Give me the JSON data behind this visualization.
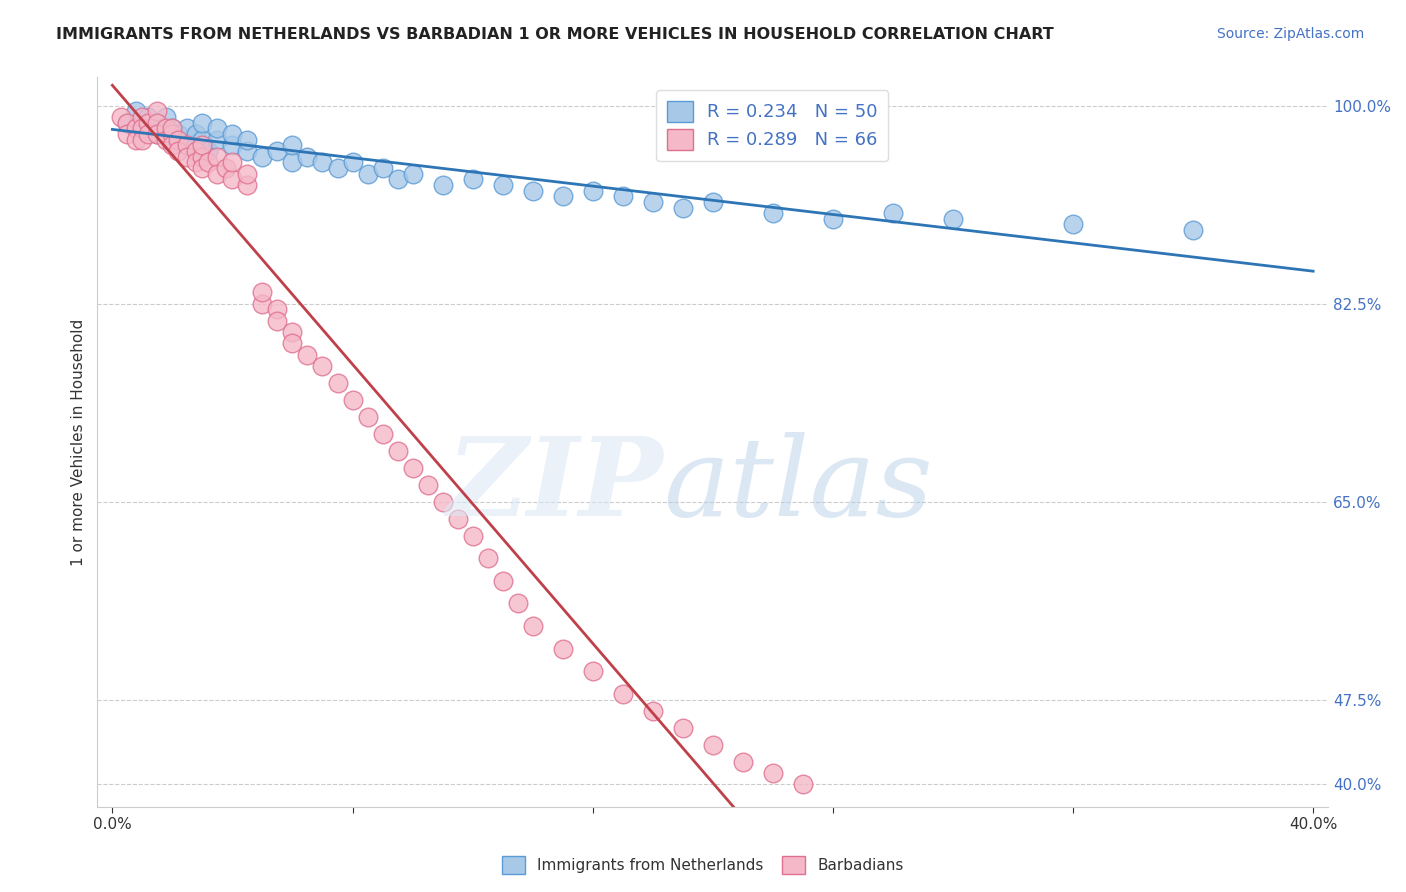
{
  "title": "IMMIGRANTS FROM NETHERLANDS VS BARBADIAN 1 OR MORE VEHICLES IN HOUSEHOLD CORRELATION CHART",
  "source": "Source: ZipAtlas.com",
  "ylabel_label": "1 or more Vehicles in Household",
  "legend_label1": "Immigrants from Netherlands",
  "legend_label2": "Barbadians",
  "R1": 0.234,
  "N1": 50,
  "R2": 0.289,
  "N2": 66,
  "color_netherlands": "#a8c8e8",
  "color_netherlands_edge": "#5b9bd5",
  "color_barbadian": "#f4b8c8",
  "color_barbadian_edge": "#e07090",
  "color_netherlands_line": "#2e75b6",
  "color_barbadian_line": "#c0404a",
  "background_color": "#ffffff",
  "netherlands_x": [
    0.5,
    0.8,
    1.0,
    1.2,
    1.5,
    1.5,
    1.8,
    2.0,
    2.0,
    2.2,
    2.5,
    2.5,
    2.8,
    3.0,
    3.0,
    3.2,
    3.5,
    3.5,
    4.0,
    4.0,
    4.5,
    4.5,
    5.0,
    5.5,
    6.0,
    6.0,
    6.5,
    7.0,
    7.5,
    8.0,
    8.5,
    9.0,
    9.5,
    10.0,
    11.0,
    12.0,
    13.0,
    14.0,
    15.0,
    16.0,
    17.0,
    18.0,
    19.0,
    20.0,
    22.0,
    24.0,
    26.0,
    28.0,
    32.0,
    36.0
  ],
  "netherlands_y": [
    98.5,
    99.5,
    98.0,
    99.0,
    98.5,
    97.5,
    99.0,
    97.0,
    98.0,
    97.5,
    98.0,
    96.5,
    97.5,
    97.0,
    98.5,
    96.0,
    97.0,
    98.0,
    96.5,
    97.5,
    96.0,
    97.0,
    95.5,
    96.0,
    95.0,
    96.5,
    95.5,
    95.0,
    94.5,
    95.0,
    94.0,
    94.5,
    93.5,
    94.0,
    93.0,
    93.5,
    93.0,
    92.5,
    92.0,
    92.5,
    92.0,
    91.5,
    91.0,
    91.5,
    90.5,
    90.0,
    90.5,
    90.0,
    89.5,
    89.0
  ],
  "barbadian_x": [
    0.3,
    0.5,
    0.5,
    0.8,
    0.8,
    1.0,
    1.0,
    1.0,
    1.2,
    1.2,
    1.5,
    1.5,
    1.5,
    1.8,
    1.8,
    2.0,
    2.0,
    2.0,
    2.2,
    2.2,
    2.5,
    2.5,
    2.8,
    2.8,
    3.0,
    3.0,
    3.0,
    3.2,
    3.5,
    3.5,
    3.8,
    4.0,
    4.0,
    4.5,
    4.5,
    5.0,
    5.0,
    5.5,
    5.5,
    6.0,
    6.0,
    6.5,
    7.0,
    7.5,
    8.0,
    8.5,
    9.0,
    9.5,
    10.0,
    10.5,
    11.0,
    11.5,
    12.0,
    12.5,
    13.0,
    13.5,
    14.0,
    15.0,
    16.0,
    17.0,
    18.0,
    19.0,
    20.0,
    21.0,
    22.0,
    23.0
  ],
  "barbadian_y": [
    99.0,
    98.5,
    97.5,
    98.0,
    97.0,
    99.0,
    98.0,
    97.0,
    98.5,
    97.5,
    99.5,
    98.5,
    97.5,
    98.0,
    97.0,
    97.5,
    96.5,
    98.0,
    97.0,
    96.0,
    96.5,
    95.5,
    96.0,
    95.0,
    95.5,
    96.5,
    94.5,
    95.0,
    95.5,
    94.0,
    94.5,
    93.5,
    95.0,
    93.0,
    94.0,
    82.5,
    83.5,
    82.0,
    81.0,
    80.0,
    79.0,
    78.0,
    77.0,
    75.5,
    74.0,
    72.5,
    71.0,
    69.5,
    68.0,
    66.5,
    65.0,
    63.5,
    62.0,
    60.0,
    58.0,
    56.0,
    54.0,
    52.0,
    50.0,
    48.0,
    46.5,
    45.0,
    43.5,
    42.0,
    41.0,
    40.0
  ]
}
